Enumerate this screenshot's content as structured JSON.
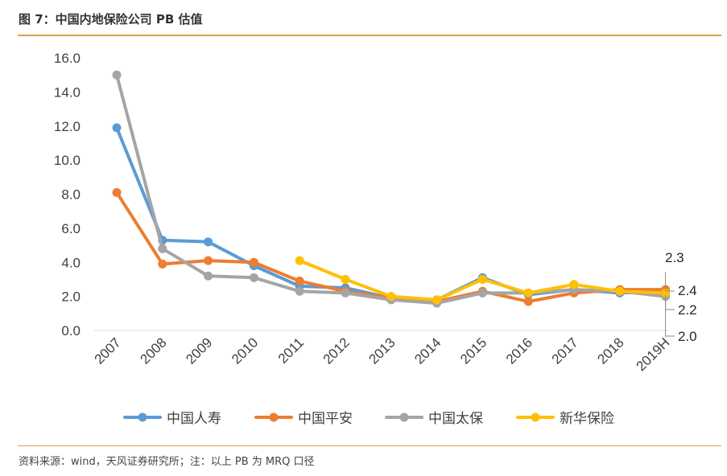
{
  "figure": {
    "title": "图 7：中国内地保险公司 PB 估值",
    "source": "资料来源：wind，天风证券研究所；注：以上 PB 为 MRQ 口径"
  },
  "chart_data": {
    "type": "line",
    "title": "",
    "xlabel": "",
    "ylabel": "",
    "categories": [
      "2007",
      "2008",
      "2009",
      "2010",
      "2011",
      "2012",
      "2013",
      "2014",
      "2015",
      "2016",
      "2017",
      "2018",
      "2019H"
    ],
    "ylim": [
      0,
      16
    ],
    "yticks": [
      "0.0",
      "2.0",
      "4.0",
      "6.0",
      "8.0",
      "10.0",
      "12.0",
      "14.0",
      "16.0"
    ],
    "grid": false,
    "legend": "bottom",
    "series": [
      {
        "name": "中国人寿",
        "color": "#5B9BD5",
        "values": [
          11.9,
          5.3,
          5.2,
          3.8,
          2.6,
          2.5,
          1.9,
          1.8,
          3.1,
          2.1,
          2.4,
          2.2,
          2.3
        ]
      },
      {
        "name": "中国平安",
        "color": "#ED7D31",
        "values": [
          8.1,
          3.9,
          4.1,
          4.0,
          2.9,
          2.3,
          1.9,
          1.7,
          2.3,
          1.7,
          2.2,
          2.4,
          2.4
        ]
      },
      {
        "name": "中国太保",
        "color": "#A5A5A5",
        "values": [
          15.0,
          4.8,
          3.2,
          3.1,
          2.3,
          2.2,
          1.8,
          1.6,
          2.2,
          2.2,
          2.4,
          2.3,
          2.0
        ]
      },
      {
        "name": "新华保险",
        "color": "#FFC000",
        "values": [
          null,
          null,
          null,
          null,
          4.1,
          3.0,
          2.0,
          1.8,
          3.0,
          2.2,
          2.7,
          2.3,
          2.2
        ]
      }
    ],
    "annotations": [
      "2.3",
      "2.4",
      "2.2",
      "2.0"
    ]
  }
}
